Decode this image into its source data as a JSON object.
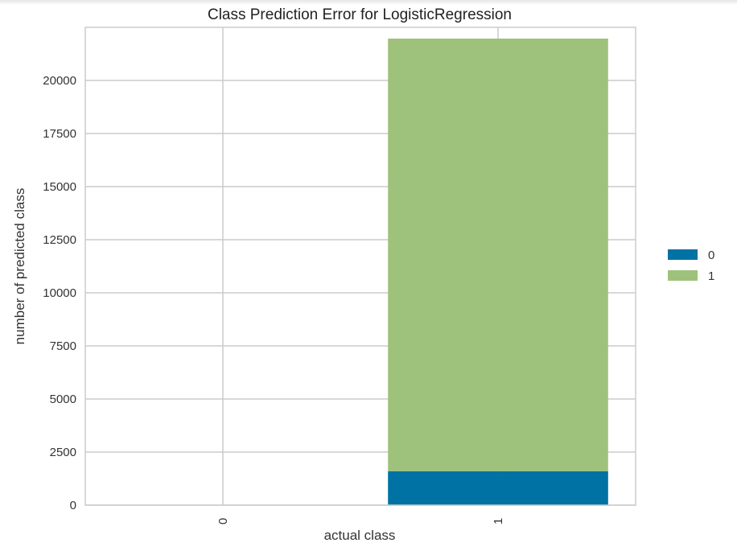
{
  "chart_data": {
    "type": "bar",
    "stacked": true,
    "title": "Class Prediction Error for LogisticRegression",
    "xlabel": "actual class",
    "ylabel": "number of predicted class",
    "categories": [
      "0",
      "1"
    ],
    "series": [
      {
        "name": "0",
        "color": "#0072a3",
        "values": [
          0,
          1600
        ]
      },
      {
        "name": "1",
        "color": "#9ec27b",
        "values": [
          0,
          20370
        ]
      }
    ],
    "ylim": [
      0,
      22500
    ],
    "yticks": [
      0,
      2500,
      5000,
      7500,
      10000,
      12500,
      15000,
      17500,
      20000
    ],
    "grid": true,
    "legend_position": "right"
  }
}
